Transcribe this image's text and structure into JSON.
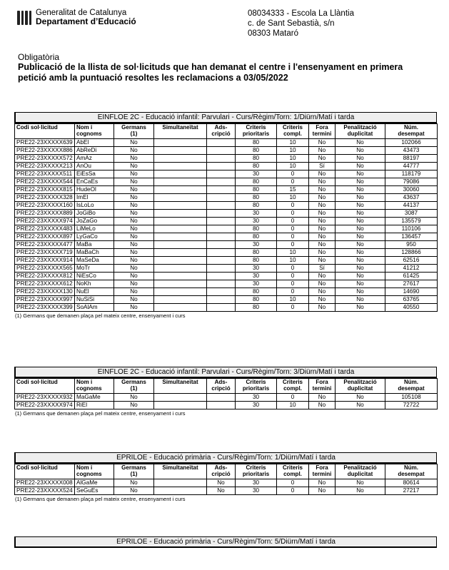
{
  "header": {
    "org_line1": "Generalitat de Catalunya",
    "org_line2": "Departament d’Educació",
    "school": [
      "08034333 - Escola La Llàntia",
      "c. de Sant Sebastià, s/n",
      "08303 Mataró"
    ],
    "subtitle": "Obligatòria",
    "title_line1": "Publicació de la llista de sol·licituds que han demanat el centre i l'ensenyament en primera",
    "title_line2": "petició amb la puntuació resoltes les reclamacions a 03/05/2022"
  },
  "columns": [
    [
      "Codi sol·licitud",
      ""
    ],
    [
      "Nom i",
      "cognoms"
    ],
    [
      "Germans",
      "(1)"
    ],
    [
      "Simultaneïtat",
      ""
    ],
    [
      "Ads-",
      "cripció"
    ],
    [
      "Criteris",
      "prioritaris"
    ],
    [
      "Criteris",
      "compl."
    ],
    [
      "Fora",
      "termini"
    ],
    [
      "Penalització",
      "duplicitat"
    ],
    [
      "Núm.",
      "desempat"
    ]
  ],
  "footnote": "(1) Germans que demanen plaça pel mateix centre, ensenyament i curs",
  "sections": [
    {
      "caption": "EINFLOE 2C - Educació infantil: Parvulari    -  Curs/Règim/Torn:  1/Diürn/Matí i tarda",
      "rows": [
        [
          "PRE22-23XXXXX639",
          "AbEl",
          "No",
          "",
          "",
          "80",
          "10",
          "No",
          "No",
          "102066"
        ],
        [
          "PRE22-23XXXXX886",
          "AbReDi",
          "No",
          "",
          "",
          "80",
          "10",
          "No",
          "No",
          "43473"
        ],
        [
          "PRE22-23XXXXX572",
          "AmAz",
          "No",
          "",
          "",
          "80",
          "10",
          "No",
          "No",
          "88197"
        ],
        [
          "PRE22-23XXXXX213",
          "AnOu",
          "No",
          "",
          "",
          "80",
          "10",
          "Sí",
          "No",
          "44777"
        ],
        [
          "PRE22-23XXXXX511",
          "EiEsSa",
          "No",
          "",
          "",
          "30",
          "0",
          "No",
          "No",
          "118179"
        ],
        [
          "PRE22-23XXXXX544",
          "EnCaEs",
          "No",
          "",
          "",
          "80",
          "0",
          "No",
          "No",
          "79086"
        ],
        [
          "PRE22-23XXXXX815",
          "HudeOl",
          "No",
          "",
          "",
          "80",
          "15",
          "No",
          "No",
          "30060"
        ],
        [
          "PRE22-23XXXXX328",
          "ImEl",
          "No",
          "",
          "",
          "80",
          "10",
          "No",
          "No",
          "43637"
        ],
        [
          "PRE22-23XXXXX160",
          "IsLoLo",
          "No",
          "",
          "",
          "80",
          "0",
          "No",
          "No",
          "44137"
        ],
        [
          "PRE22-23XXXXX889",
          "JoGiBo",
          "No",
          "",
          "",
          "30",
          "0",
          "No",
          "No",
          "3087"
        ],
        [
          "PRE22-23XXXXX974",
          "JoZaGo",
          "No",
          "",
          "",
          "30",
          "0",
          "No",
          "No",
          "135579"
        ],
        [
          "PRE22-23XXXXX483",
          "LiMeLo",
          "No",
          "",
          "",
          "80",
          "0",
          "No",
          "No",
          "110106"
        ],
        [
          "PRE22-23XXXXX897",
          "LyGaCo",
          "No",
          "",
          "",
          "80",
          "0",
          "No",
          "No",
          "136457"
        ],
        [
          "PRE22-23XXXXX477",
          "MaBa",
          "No",
          "",
          "",
          "30",
          "0",
          "No",
          "No",
          "950"
        ],
        [
          "PRE22-23XXXXX719",
          "MaBaCh",
          "No",
          "",
          "",
          "80",
          "10",
          "No",
          "No",
          "128866"
        ],
        [
          "PRE22-23XXXXX914",
          "MaSeDa",
          "No",
          "",
          "",
          "80",
          "10",
          "No",
          "No",
          "62516"
        ],
        [
          "PRE22-23XXXXX565",
          "MoTr",
          "No",
          "",
          "",
          "30",
          "0",
          "Sí",
          "No",
          "41212"
        ],
        [
          "PRE22-23XXXXX812",
          "NiEsCo",
          "No",
          "",
          "",
          "30",
          "0",
          "No",
          "No",
          "61425"
        ],
        [
          "PRE22-23XXXXX612",
          "NoKh",
          "No",
          "",
          "",
          "30",
          "0",
          "No",
          "No",
          "27617"
        ],
        [
          "PRE22-23XXXXX130",
          "NuEl",
          "No",
          "",
          "",
          "80",
          "0",
          "No",
          "No",
          "14690"
        ],
        [
          "PRE22-23XXXXX997",
          "NuSiSi",
          "No",
          "",
          "",
          "80",
          "10",
          "No",
          "No",
          "63765"
        ],
        [
          "PRE22-23XXXXX399",
          "SoAlAm",
          "No",
          "",
          "",
          "80",
          "0",
          "No",
          "No",
          "40550"
        ]
      ]
    },
    {
      "caption": "EINFLOE 2C - Educació infantil: Parvulari    -  Curs/Règim/Torn:  3/Diürn/Matí i tarda",
      "rows": [
        [
          "PRE22-23XXXXX932",
          "MaGaMe",
          "No",
          "",
          "",
          "30",
          "0",
          "No",
          "No",
          "105108"
        ],
        [
          "PRE22-23XXXXX974",
          "RiEl",
          "No",
          "",
          "",
          "30",
          "10",
          "No",
          "No",
          "72722"
        ]
      ]
    },
    {
      "caption": "EPRILOE - Educació primària    -  Curs/Règim/Torn:  1/Diürn/Matí i tarda",
      "rows": [
        [
          "PRE22-23XXXXX008",
          "AlGaMe",
          "No",
          "",
          "No",
          "30",
          "0",
          "No",
          "No",
          "80614"
        ],
        [
          "PRE22-23XXXXX524",
          "SeGuEs",
          "No",
          "",
          "No",
          "30",
          "0",
          "No",
          "No",
          "27217"
        ]
      ]
    },
    {
      "caption": "EPRILOE - Educació primària    -  Curs/Règim/Torn:  5/Diürn/Matí i tarda",
      "rows": []
    }
  ]
}
